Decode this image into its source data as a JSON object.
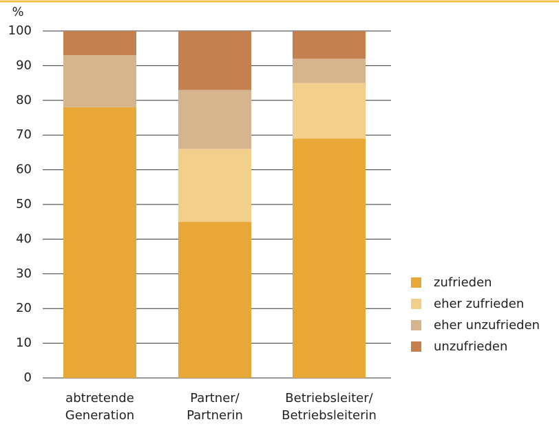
{
  "chart_data": {
    "type": "stacked_bar",
    "y_unit": "%",
    "categories": [
      [
        "abtretende",
        "Generation"
      ],
      [
        "Partner/",
        "Partnerin"
      ],
      [
        "Betriebsleiter/",
        "Betriebsleiterin"
      ]
    ],
    "series": [
      {
        "name": "zufrieden",
        "color": "#e8a838",
        "values": [
          78,
          45,
          69
        ]
      },
      {
        "name": "eher zufrieden",
        "color": "#f3cf8c",
        "values": [
          0,
          21,
          16
        ]
      },
      {
        "name": "eher unzufrieden",
        "color": "#d6b48e",
        "values": [
          15,
          17,
          7
        ]
      },
      {
        "name": "unzufrieden",
        "color": "#c4804f",
        "values": [
          7,
          17,
          8
        ]
      }
    ],
    "ylim": [
      0,
      100
    ],
    "yticks": [
      0,
      10,
      20,
      30,
      40,
      50,
      60,
      70,
      80,
      90,
      100
    ],
    "grid": true
  }
}
